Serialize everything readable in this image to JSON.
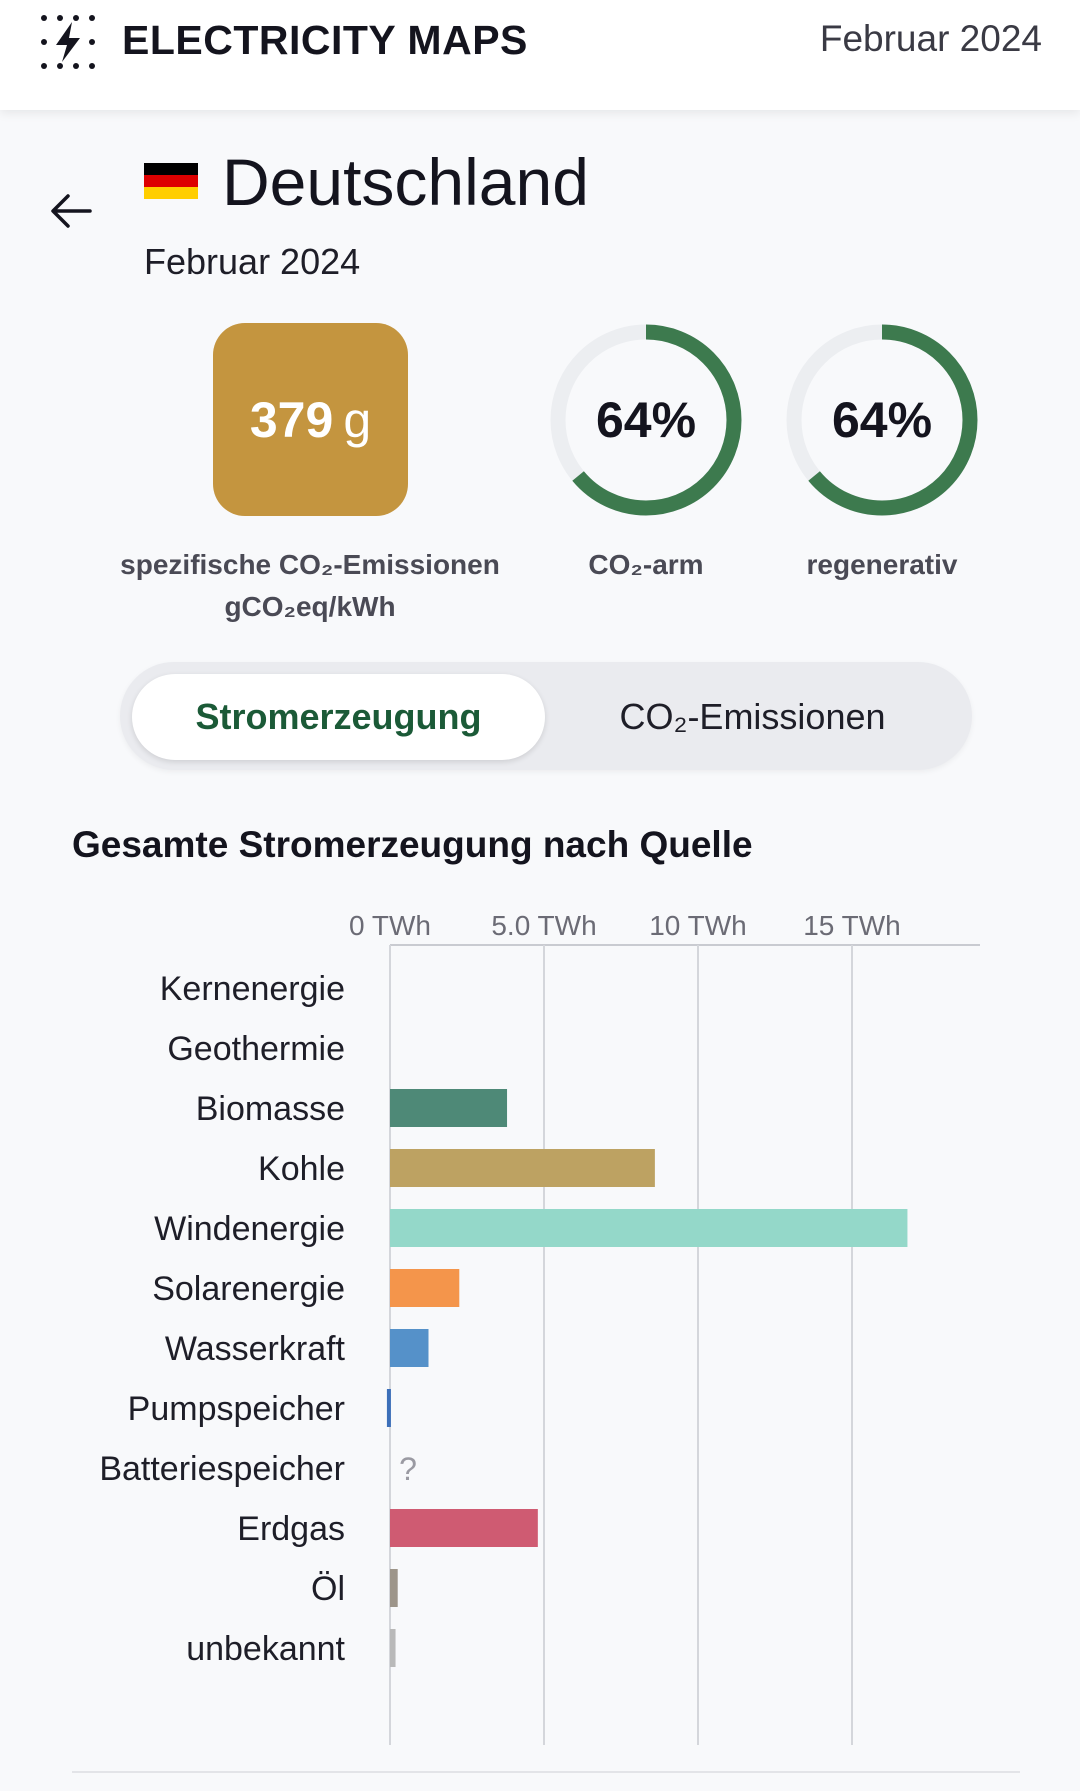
{
  "header": {
    "app_name": "ELECTRICITY MAPS",
    "logo_icon": "lightning-dots-icon",
    "date": "Februar 2024"
  },
  "zone": {
    "name": "Deutschland",
    "flag_colors": [
      "#000000",
      "#dd0000",
      "#ffce00"
    ],
    "period": "Februar 2024"
  },
  "metrics": {
    "carbon_intensity": {
      "value": "379",
      "unit": "g",
      "color": "#c4953f",
      "label_line1": "spezifische CO₂-Emissionen",
      "label_line2": "gCO₂eq/kWh"
    },
    "low_carbon": {
      "value": "64%",
      "fraction": 0.64,
      "label": "CO₂-arm"
    },
    "renewable": {
      "value": "64%",
      "fraction": 0.64,
      "label": "regenerativ"
    },
    "ring_color": "#3d7a4e",
    "ring_track_color": "#eceef1"
  },
  "toggle": {
    "active": "Stromerzeugung",
    "inactive": "CO₂-Emissionen"
  },
  "section_title": "Gesamte Stromerzeugung nach Quelle",
  "chart_data": {
    "type": "bar",
    "orientation": "horizontal",
    "xlim": [
      0,
      19.2
    ],
    "ticks": [
      0,
      5,
      10,
      15
    ],
    "tick_labels": [
      "0 TWh",
      "5.0 TWh",
      "10 TWh",
      "15 TWh"
    ],
    "categories": [
      "Kernenergie",
      "Geothermie",
      "Biomasse",
      "Kohle",
      "Windenergie",
      "Solarenergie",
      "Wasserkraft",
      "Pumpspeicher",
      "Batteriespeicher",
      "Erdgas",
      "Öl",
      "unbekannt"
    ],
    "values": [
      0,
      0,
      3.8,
      8.6,
      16.8,
      2.25,
      1.25,
      -0.1,
      null,
      4.8,
      0.25,
      0.18
    ],
    "colors": [
      "#9c68b3",
      "#b05e3f",
      "#4e8977",
      "#bda262",
      "#94d8c9",
      "#f4954b",
      "#5591c9",
      "#3c6fb9",
      "#b4b4b4",
      "#cf5b72",
      "#9d958a",
      "#b9b9b9"
    ],
    "missing_label": "?"
  }
}
